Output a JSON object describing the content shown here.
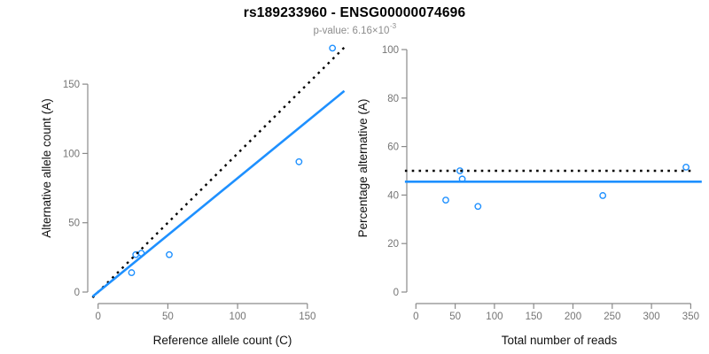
{
  "title": "rs189233960 - ENSG00000074696",
  "subtitle": {
    "label": "p-value: 6.16×10",
    "exponent": "-3"
  },
  "colors": {
    "accent_blue": "#1E90FF",
    "reference_black": "#000000",
    "axis_gray": "#8a8a8a",
    "tick_label_gray": "#757575",
    "axis_title_color": "#111111"
  },
  "chart_data": [
    {
      "type": "scatter",
      "panel": "left",
      "xlabel": "Reference allele count (C)",
      "ylabel": "Alternative allele count (A)",
      "xticks": [
        0,
        50,
        100,
        150
      ],
      "yticks": [
        0,
        50,
        100,
        150
      ],
      "xlim": [
        -7,
        178
      ],
      "ylim": [
        -7,
        183
      ],
      "grid": false,
      "points": [
        {
          "x": 24,
          "y": 14
        },
        {
          "x": 27,
          "y": 27
        },
        {
          "x": 31,
          "y": 28
        },
        {
          "x": 51,
          "y": 27
        },
        {
          "x": 144,
          "y": 94
        },
        {
          "x": 168,
          "y": 176
        }
      ],
      "lines": [
        {
          "name": "expected-identity-line",
          "style": "dotted",
          "color_key": "reference_black",
          "slope": 1,
          "intercept": 0,
          "x_range": [
            -4,
            178
          ]
        },
        {
          "name": "fitted-line",
          "style": "solid",
          "color_key": "accent_blue",
          "slope": 0.822,
          "intercept": 0,
          "x_range": [
            -4,
            176.5
          ]
        }
      ]
    },
    {
      "type": "scatter",
      "panel": "right",
      "xlabel": "Total number of reads",
      "ylabel": "Percentage alternative (A)",
      "xticks": [
        0,
        50,
        100,
        150,
        200,
        250,
        300,
        350
      ],
      "yticks": [
        0,
        20,
        40,
        60,
        80,
        100
      ],
      "xlim": [
        -14,
        364
      ],
      "ylim": [
        0,
        100
      ],
      "grid": false,
      "points": [
        {
          "x": 38,
          "y": 37.9
        },
        {
          "x": 56,
          "y": 50
        },
        {
          "x": 59,
          "y": 46.6
        },
        {
          "x": 79,
          "y": 35.3
        },
        {
          "x": 238,
          "y": 39.8
        },
        {
          "x": 344,
          "y": 51.5
        }
      ],
      "lines": [
        {
          "name": "expected-percentage-line",
          "style": "dotted",
          "color_key": "reference_black",
          "hline": 50,
          "x_range": [
            -14,
            352
          ]
        },
        {
          "name": "fitted-percentage-line",
          "style": "solid",
          "color_key": "accent_blue",
          "hline": 45.5,
          "x_range": [
            -14,
            364
          ]
        }
      ]
    }
  ]
}
